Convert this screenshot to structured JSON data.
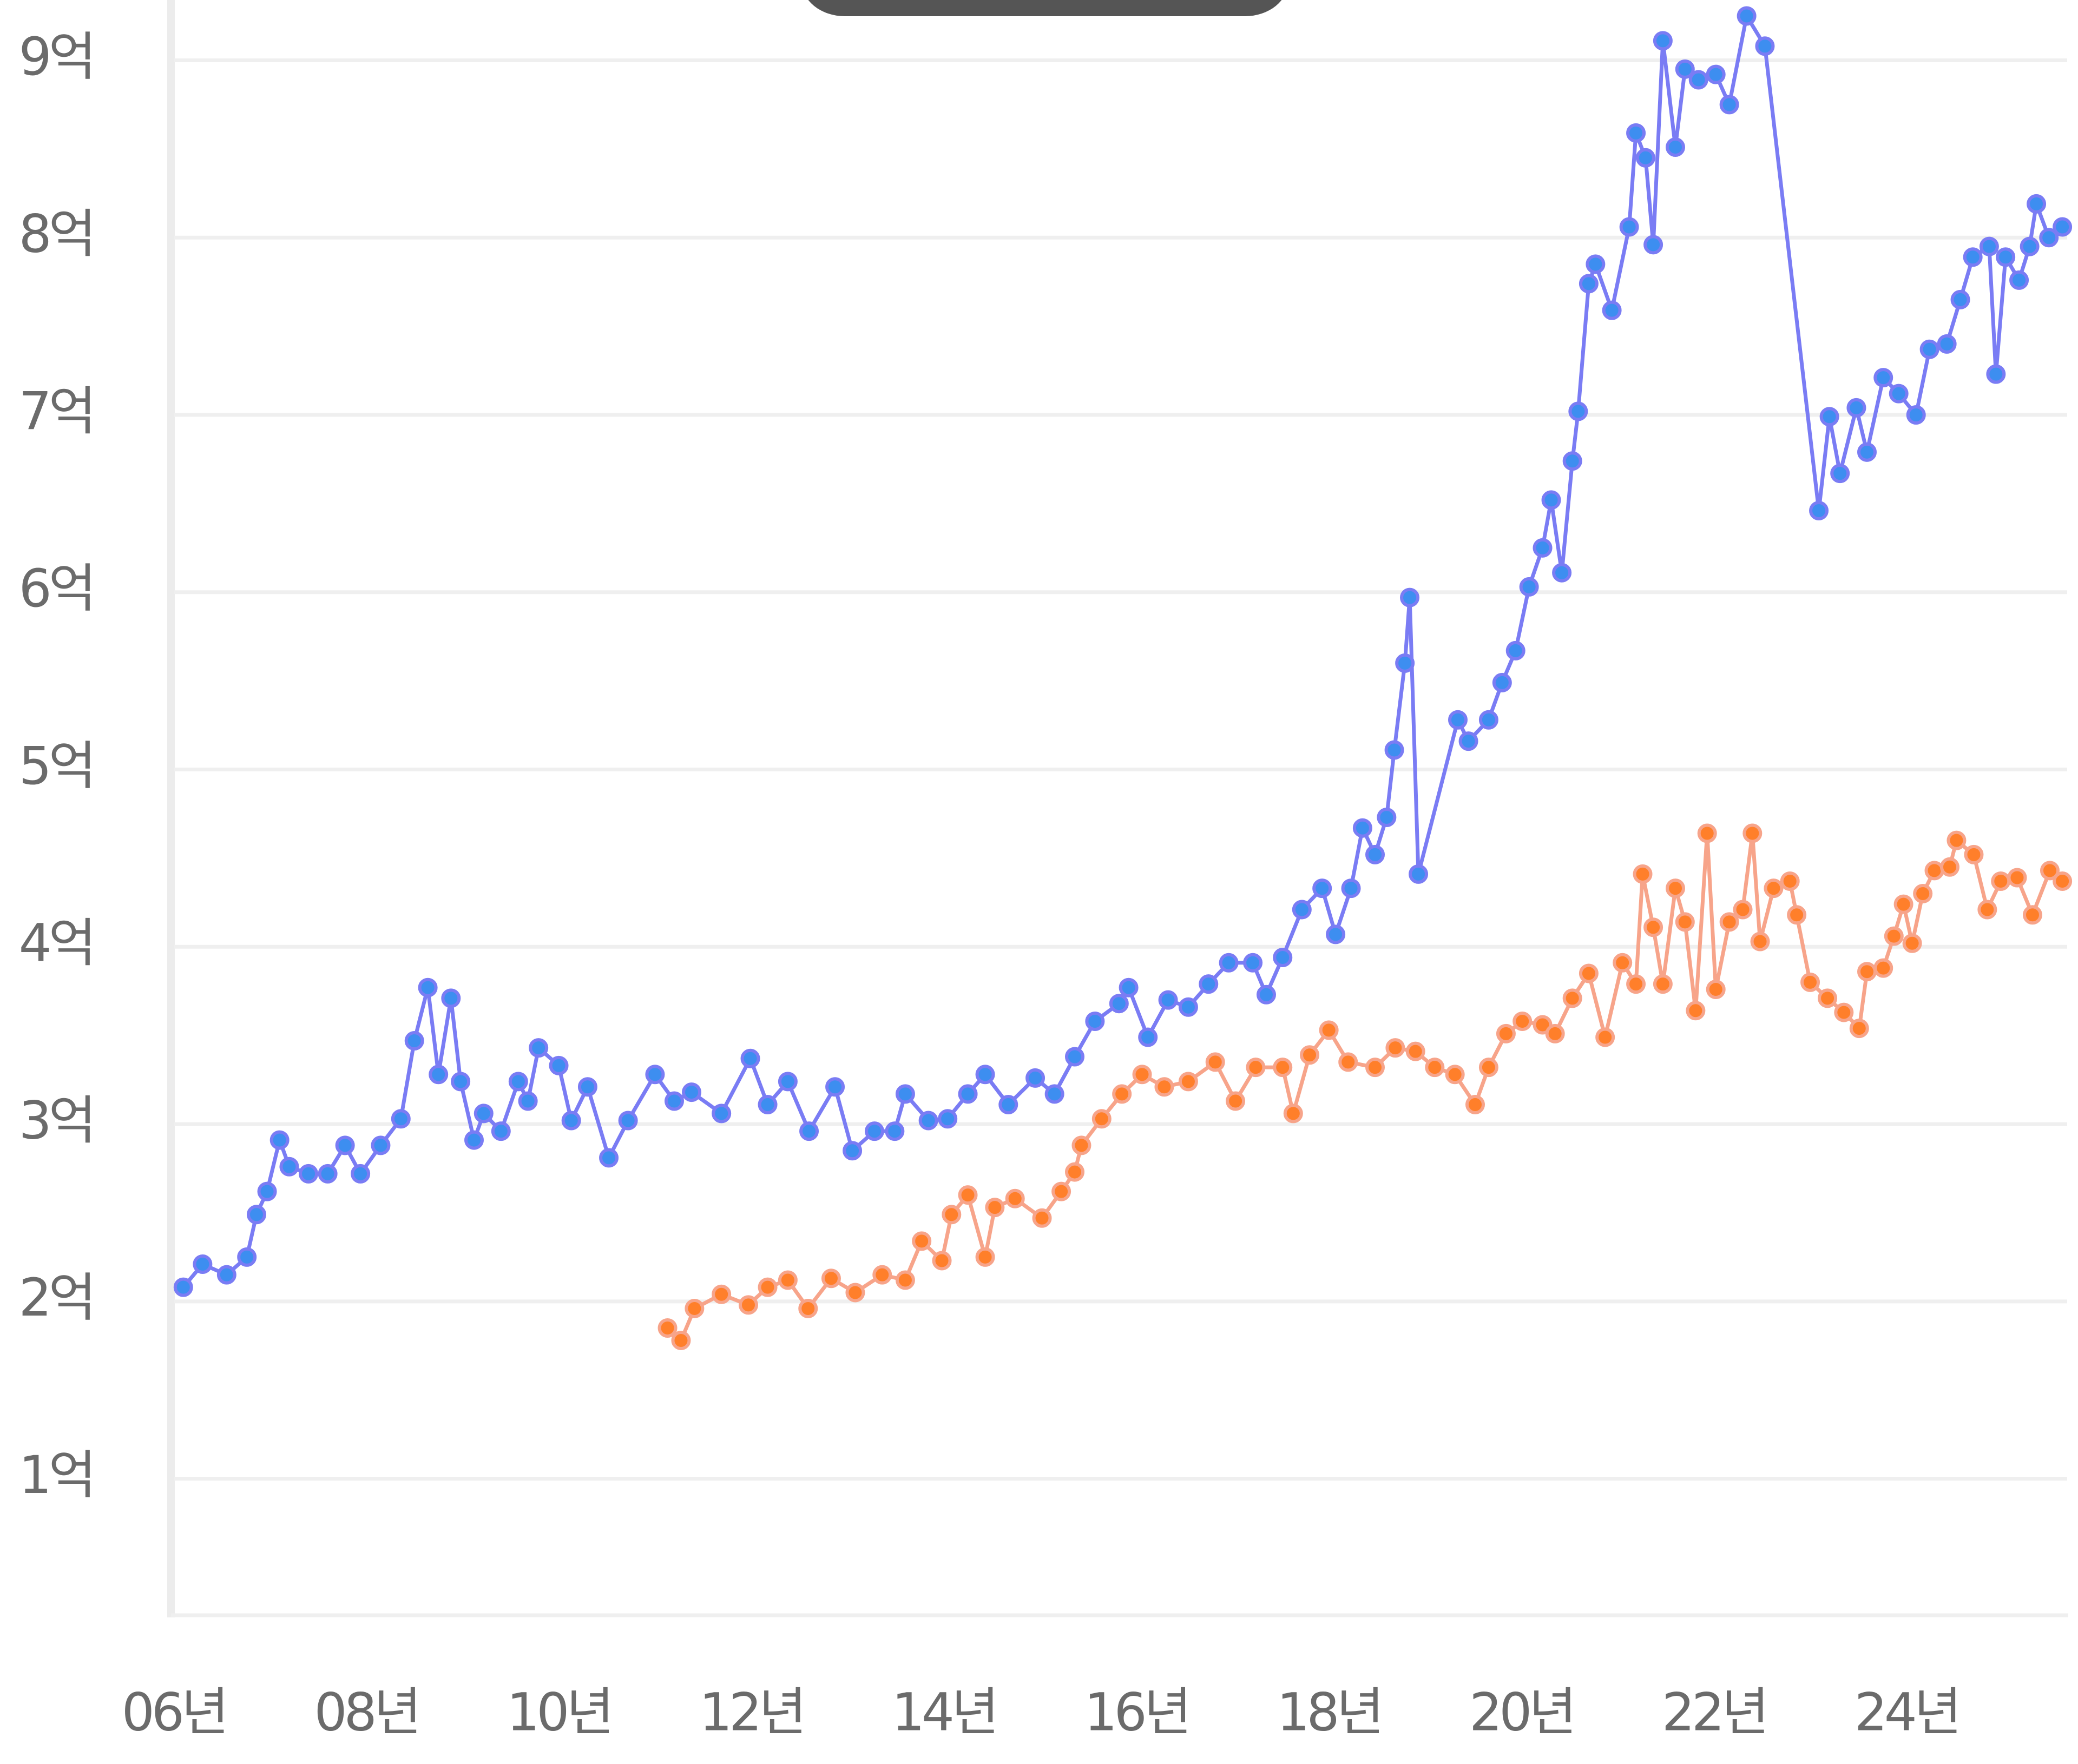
{
  "chart_data": {
    "type": "line",
    "xlim": [
      2006,
      2025.67
    ],
    "ylim": [
      0.23,
      9.34
    ],
    "xticks": [
      {
        "value": 2006,
        "label": "06년"
      },
      {
        "value": 2008,
        "label": "08년"
      },
      {
        "value": 2010,
        "label": "10년"
      },
      {
        "value": 2012,
        "label": "12년"
      },
      {
        "value": 2014,
        "label": "14년"
      },
      {
        "value": 2016,
        "label": "16년"
      },
      {
        "value": 2018,
        "label": "18년"
      },
      {
        "value": 2020,
        "label": "20년"
      },
      {
        "value": 2022,
        "label": "22년"
      },
      {
        "value": 2024,
        "label": "24년"
      }
    ],
    "yticks": [
      {
        "value": 1,
        "label": "1억"
      },
      {
        "value": 2,
        "label": "2억"
      },
      {
        "value": 3,
        "label": "3억"
      },
      {
        "value": 4,
        "label": "4억"
      },
      {
        "value": 5,
        "label": "5억"
      },
      {
        "value": 6,
        "label": "6억"
      },
      {
        "value": 7,
        "label": "7억"
      },
      {
        "value": 8,
        "label": "8억"
      },
      {
        "value": 9,
        "label": "9억"
      }
    ],
    "grid": true,
    "series": [
      {
        "color": "#7a7cf4",
        "marker_color": "#3d8ef0",
        "x": [
          2006.1,
          2006.3,
          2006.55,
          2006.76,
          2006.86,
          2006.97,
          2007.1,
          2007.2,
          2007.4,
          2007.6,
          2007.78,
          2007.94,
          2008.15,
          2008.36,
          2008.5,
          2008.64,
          2008.75,
          2008.88,
          2008.98,
          2009.12,
          2009.22,
          2009.4,
          2009.58,
          2009.68,
          2009.79,
          2010.0,
          2010.13,
          2010.3,
          2010.52,
          2010.72,
          2011.0,
          2011.2,
          2011.38,
          2011.69,
          2011.99,
          2012.17,
          2012.38,
          2012.6,
          2012.87,
          2013.05,
          2013.28,
          2013.49,
          2013.6,
          2013.84,
          2014.04,
          2014.25,
          2014.43,
          2014.67,
          2014.95,
          2015.15,
          2015.36,
          2015.57,
          2015.82,
          2015.92,
          2016.12,
          2016.33,
          2016.54,
          2016.75,
          2016.96,
          2017.21,
          2017.35,
          2017.52,
          2017.72,
          2017.93,
          2018.07,
          2018.23,
          2018.35,
          2018.48,
          2018.6,
          2018.68,
          2018.79,
          2018.84,
          2018.93,
          2019.34,
          2019.45,
          2019.66,
          2019.8,
          2019.94,
          2020.08,
          2020.22,
          2020.31,
          2020.42,
          2020.53,
          2020.59,
          2020.7,
          2020.77,
          2020.94,
          2021.12,
          2021.19,
          2021.29,
          2021.37,
          2021.47,
          2021.6,
          2021.7,
          2021.84,
          2022.02,
          2022.16,
          2022.34,
          2022.53,
          2023.09,
          2023.2,
          2023.31,
          2023.48,
          2023.59,
          2023.76,
          2023.92,
          2024.1,
          2024.24,
          2024.42,
          2024.56,
          2024.69,
          2024.86,
          2024.93,
          2025.03,
          2025.17,
          2025.28,
          2025.35,
          2025.48,
          2025.62
        ],
        "values": [
          2.08,
          2.21,
          2.15,
          2.25,
          2.49,
          2.62,
          2.91,
          2.76,
          2.72,
          2.72,
          2.88,
          2.72,
          2.88,
          3.03,
          3.47,
          3.77,
          3.28,
          3.71,
          3.24,
          2.91,
          3.06,
          2.96,
          3.24,
          3.13,
          3.43,
          3.33,
          3.02,
          3.21,
          2.81,
          3.02,
          3.28,
          3.13,
          3.18,
          3.06,
          3.37,
          3.11,
          3.24,
          2.96,
          3.21,
          2.85,
          2.96,
          2.96,
          3.17,
          3.02,
          3.03,
          3.17,
          3.28,
          3.11,
          3.26,
          3.17,
          3.38,
          3.58,
          3.68,
          3.77,
          3.49,
          3.7,
          3.66,
          3.79,
          3.91,
          3.91,
          3.73,
          3.94,
          4.21,
          4.33,
          4.07,
          4.33,
          4.67,
          4.52,
          4.73,
          5.11,
          5.6,
          5.97,
          4.41,
          5.28,
          5.16,
          5.28,
          5.49,
          5.67,
          6.03,
          6.25,
          6.52,
          6.11,
          6.74,
          7.02,
          7.74,
          7.85,
          7.59,
          8.06,
          8.59,
          8.45,
          7.96,
          9.11,
          8.51,
          8.95,
          8.89,
          8.92,
          8.75,
          9.25,
          9.08,
          6.46,
          6.99,
          6.67,
          7.04,
          6.79,
          7.21,
          7.12,
          7.0,
          7.37,
          7.4,
          7.65,
          7.89,
          7.95,
          7.23,
          7.89,
          7.76,
          7.95,
          8.19,
          8.0,
          8.06
        ]
      },
      {
        "color": "#f7a48a",
        "marker_color": "#ff7f2a",
        "x": [
          2011.13,
          2011.27,
          2011.41,
          2011.69,
          2011.97,
          2012.17,
          2012.38,
          2012.59,
          2012.83,
          2013.08,
          2013.36,
          2013.6,
          2013.77,
          2013.98,
          2014.08,
          2014.25,
          2014.43,
          2014.53,
          2014.74,
          2015.02,
          2015.22,
          2015.36,
          2015.43,
          2015.64,
          2015.85,
          2016.06,
          2016.29,
          2016.54,
          2016.82,
          2017.03,
          2017.24,
          2017.52,
          2017.63,
          2017.8,
          2018.0,
          2018.2,
          2018.48,
          2018.69,
          2018.9,
          2019.1,
          2019.31,
          2019.52,
          2019.66,
          2019.84,
          2020.01,
          2020.22,
          2020.35,
          2020.53,
          2020.7,
          2020.87,
          2021.05,
          2021.19,
          2021.26,
          2021.37,
          2021.47,
          2021.6,
          2021.7,
          2021.81,
          2021.93,
          2022.02,
          2022.16,
          2022.3,
          2022.4,
          2022.48,
          2022.62,
          2022.79,
          2022.86,
          2023.0,
          2023.18,
          2023.35,
          2023.51,
          2023.59,
          2023.76,
          2023.87,
          2023.97,
          2024.06,
          2024.17,
          2024.29,
          2024.45,
          2024.52,
          2024.7,
          2024.84,
          2024.98,
          2025.15,
          2025.31,
          2025.49,
          2025.62
        ],
        "values": [
          1.85,
          1.78,
          1.96,
          2.04,
          1.98,
          2.08,
          2.12,
          1.96,
          2.13,
          2.05,
          2.15,
          2.12,
          2.34,
          2.23,
          2.49,
          2.6,
          2.25,
          2.53,
          2.58,
          2.47,
          2.62,
          2.73,
          2.88,
          3.03,
          3.17,
          3.28,
          3.21,
          3.24,
          3.35,
          3.13,
          3.32,
          3.32,
          3.06,
          3.39,
          3.53,
          3.35,
          3.32,
          3.43,
          3.41,
          3.32,
          3.28,
          3.11,
          3.32,
          3.51,
          3.58,
          3.56,
          3.51,
          3.71,
          3.85,
          3.49,
          3.91,
          3.79,
          4.41,
          4.11,
          3.79,
          4.33,
          4.14,
          3.64,
          4.64,
          3.76,
          4.14,
          4.21,
          4.64,
          4.03,
          4.33,
          4.37,
          4.18,
          3.8,
          3.71,
          3.63,
          3.54,
          3.86,
          3.88,
          4.06,
          4.24,
          4.02,
          4.3,
          4.43,
          4.45,
          4.6,
          4.52,
          4.21,
          4.37,
          4.39,
          4.18,
          4.43,
          4.37
        ]
      }
    ]
  }
}
